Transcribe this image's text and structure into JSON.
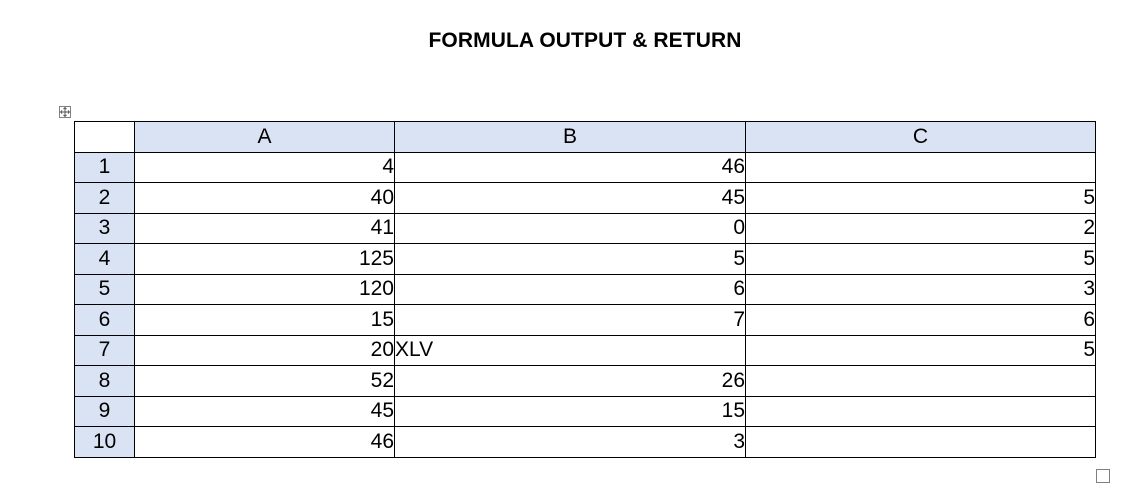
{
  "document": {
    "title": "FORMULA OUTPUT & RETURN"
  },
  "table": {
    "columns": [
      "A",
      "B",
      "C"
    ],
    "rows": [
      {
        "row": "1",
        "a": "4",
        "b": "46",
        "c": ""
      },
      {
        "row": "2",
        "a": "40",
        "b": "45",
        "c": "5"
      },
      {
        "row": "3",
        "a": "41",
        "b": "0",
        "c": "2"
      },
      {
        "row": "4",
        "a": "125",
        "b": "5",
        "c": "5"
      },
      {
        "row": "5",
        "a": "120",
        "b": "6",
        "c": "3"
      },
      {
        "row": "6",
        "a": "15",
        "b": "7",
        "c": "6"
      },
      {
        "row": "7",
        "a": "20",
        "b": "XLV",
        "c": "5"
      },
      {
        "row": "8",
        "a": "52",
        "b": "26",
        "c": ""
      },
      {
        "row": "9",
        "a": "45",
        "b": "15",
        "c": ""
      },
      {
        "row": "10",
        "a": "46",
        "b": "3",
        "c": ""
      }
    ]
  },
  "colors": {
    "header_fill": "#dae3f3",
    "border": "#000000"
  },
  "icons": {
    "table_move": "table-move-icon",
    "table_resize": "table-resize-icon"
  }
}
